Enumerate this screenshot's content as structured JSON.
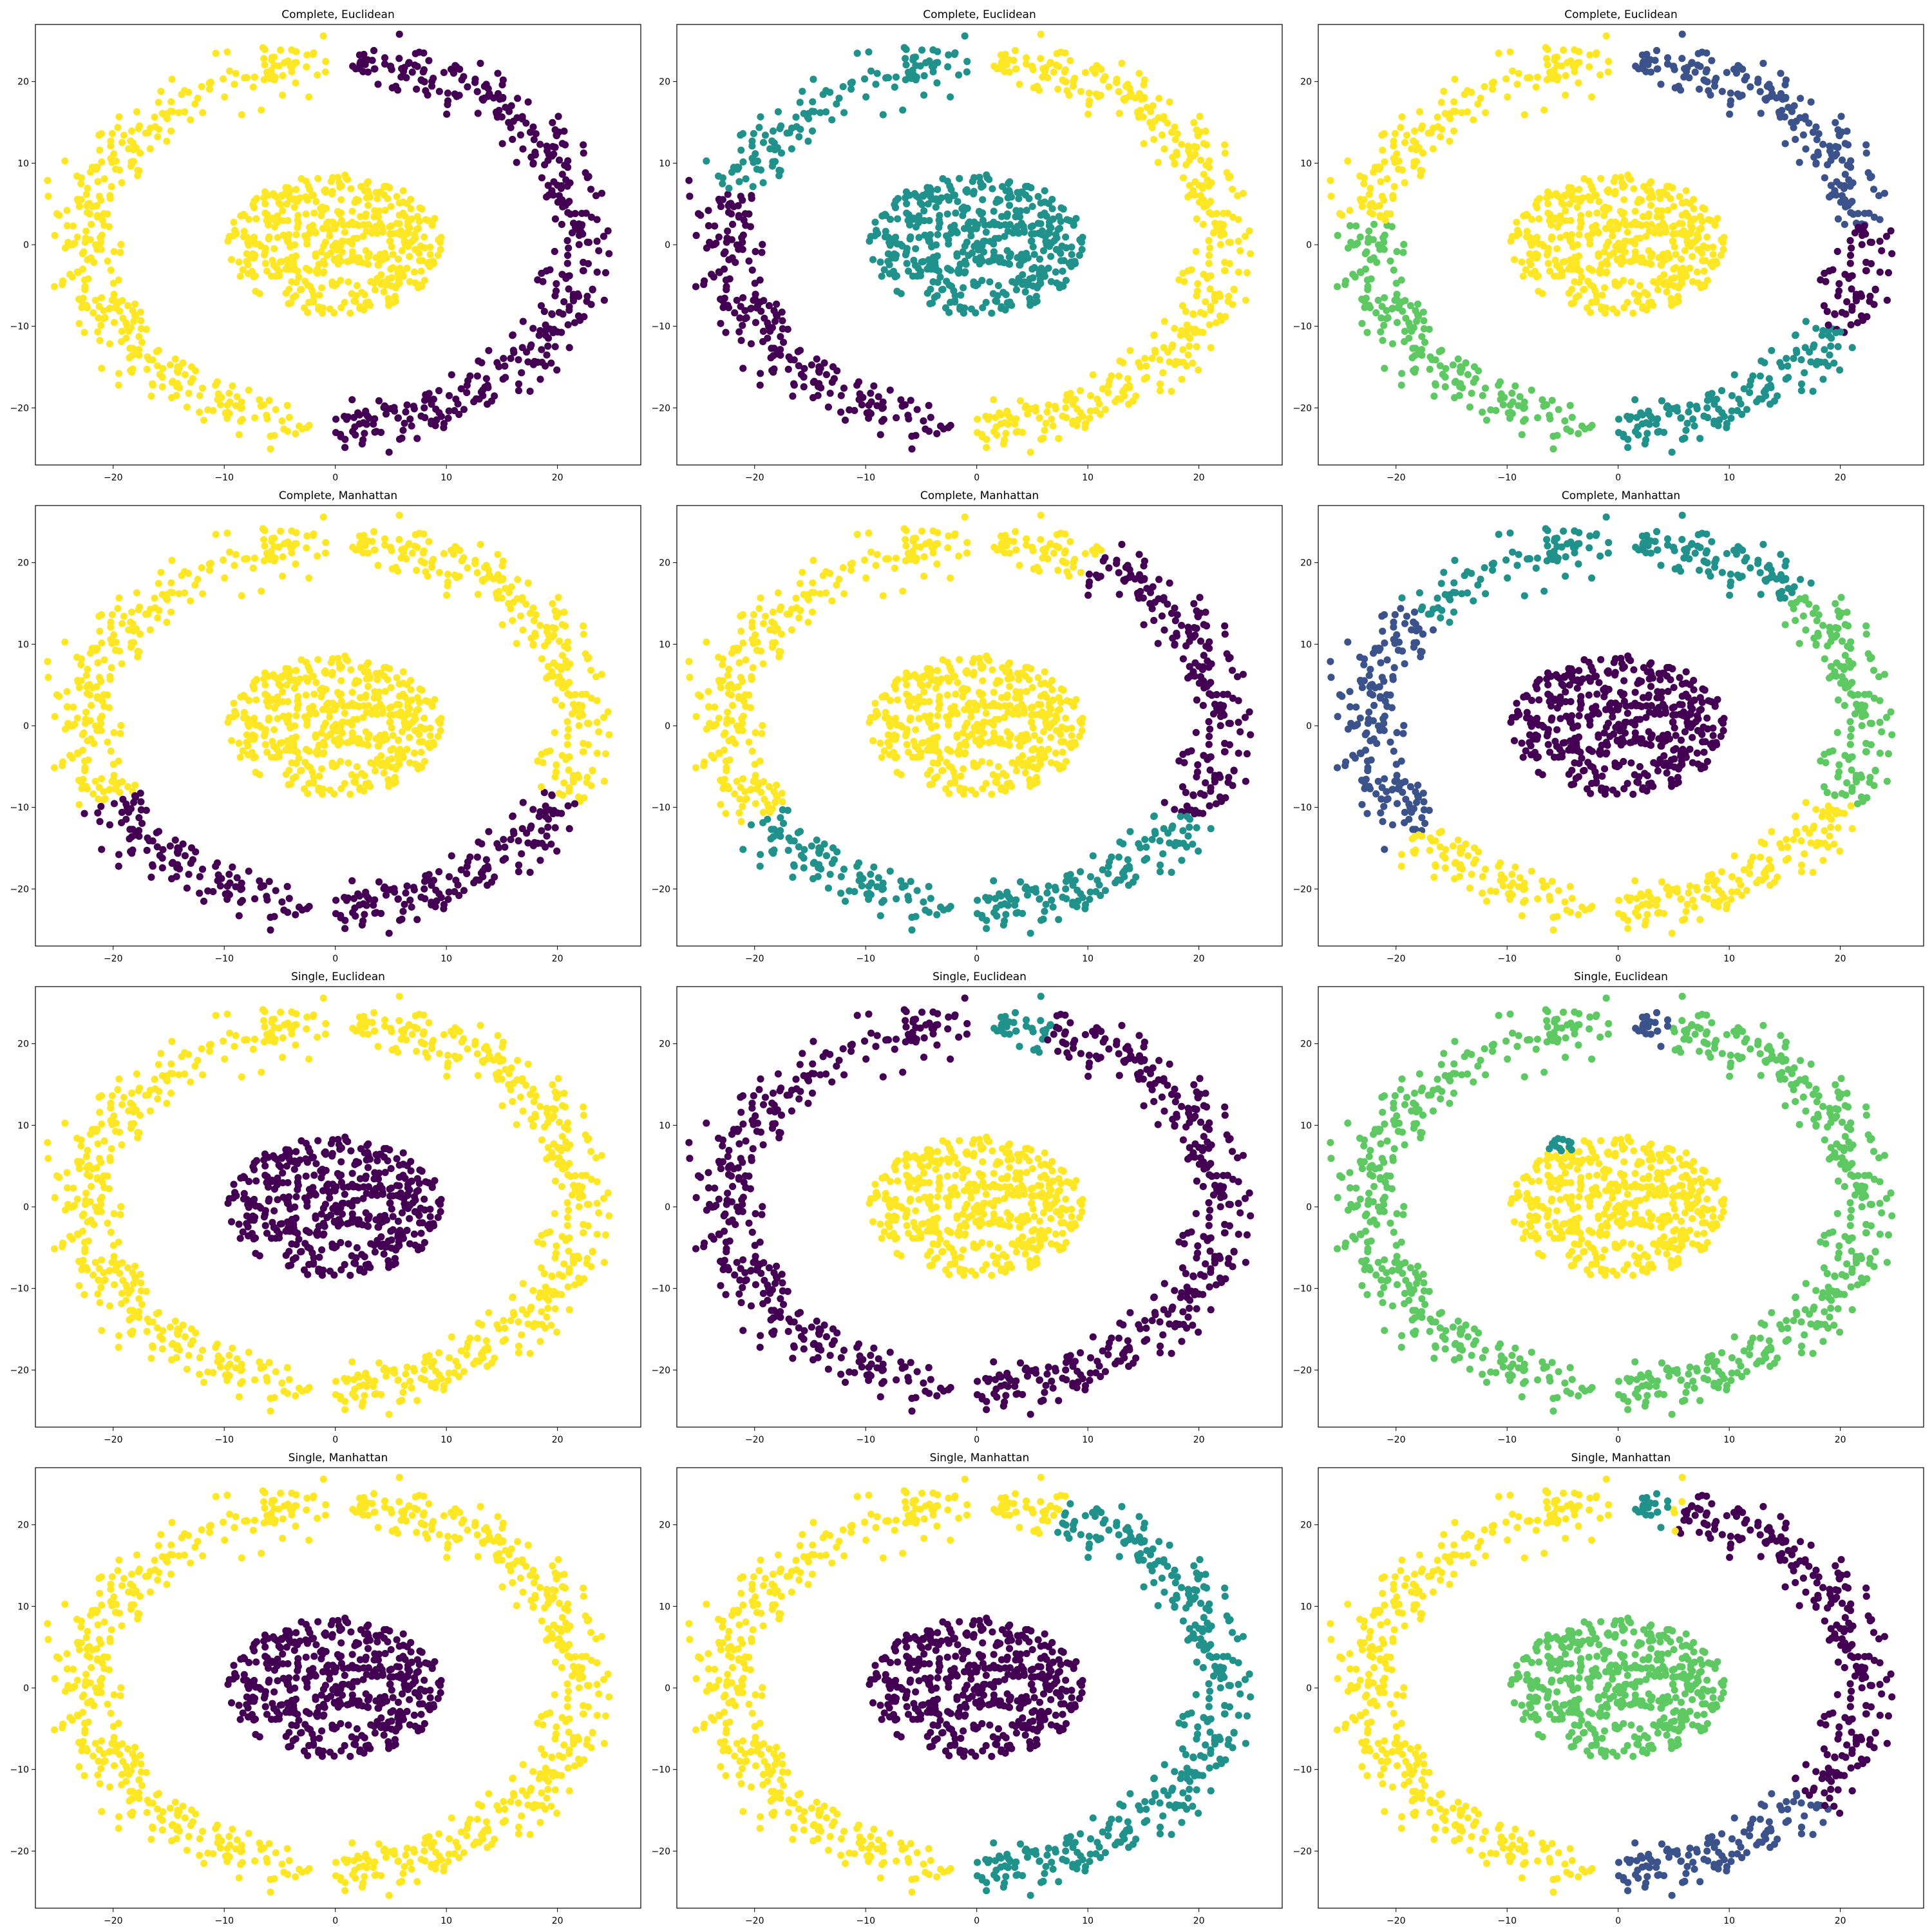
{
  "colors": {
    "c0": "#440154",
    "c1": "#3b528b",
    "c2": "#21918c",
    "c3": "#5ec962",
    "c4": "#fde725"
  },
  "chart_data": [
    {
      "type": "scatter",
      "title": "Complete, Euclidean",
      "xlim": [
        -27,
        27.5
      ],
      "ylim": [
        -27,
        27
      ],
      "xticks": [
        -20,
        -10,
        0,
        10,
        20
      ],
      "yticks": [
        -20,
        -10,
        0,
        10,
        20
      ],
      "grid": false,
      "scheme": "ce2"
    },
    {
      "type": "scatter",
      "title": "Complete, Euclidean",
      "xlim": [
        -27,
        27.5
      ],
      "ylim": [
        -27,
        27
      ],
      "xticks": [
        -20,
        -10,
        0,
        10,
        20
      ],
      "yticks": [
        -20,
        -10,
        0,
        10,
        20
      ],
      "grid": false,
      "scheme": "ce3"
    },
    {
      "type": "scatter",
      "title": "Complete, Euclidean",
      "xlim": [
        -27,
        27.5
      ],
      "ylim": [
        -27,
        27
      ],
      "xticks": [
        -20,
        -10,
        0,
        10,
        20
      ],
      "yticks": [
        -20,
        -10,
        0,
        10,
        20
      ],
      "grid": false,
      "scheme": "ce4"
    },
    {
      "type": "scatter",
      "title": "Complete, Manhattan",
      "xlim": [
        -27,
        27.5
      ],
      "ylim": [
        -27,
        27
      ],
      "xticks": [
        -20,
        -10,
        0,
        10,
        20
      ],
      "yticks": [
        -20,
        -10,
        0,
        10,
        20
      ],
      "grid": false,
      "scheme": "cm2"
    },
    {
      "type": "scatter",
      "title": "Complete, Manhattan",
      "xlim": [
        -27,
        27.5
      ],
      "ylim": [
        -27,
        27
      ],
      "xticks": [
        -20,
        -10,
        0,
        10,
        20
      ],
      "yticks": [
        -20,
        -10,
        0,
        10,
        20
      ],
      "grid": false,
      "scheme": "cm3"
    },
    {
      "type": "scatter",
      "title": "Complete, Manhattan",
      "xlim": [
        -27,
        27.5
      ],
      "ylim": [
        -27,
        27
      ],
      "xticks": [
        -20,
        -10,
        0,
        10,
        20
      ],
      "yticks": [
        -20,
        -10,
        0,
        10,
        20
      ],
      "grid": false,
      "scheme": "cm4"
    },
    {
      "type": "scatter",
      "title": "Single, Euclidean",
      "xlim": [
        -27,
        27.5
      ],
      "ylim": [
        -27,
        27
      ],
      "xticks": [
        -20,
        -10,
        0,
        10,
        20
      ],
      "yticks": [
        -20,
        -10,
        0,
        10,
        20
      ],
      "grid": false,
      "scheme": "se2"
    },
    {
      "type": "scatter",
      "title": "Single, Euclidean",
      "xlim": [
        -27,
        27.5
      ],
      "ylim": [
        -27,
        27
      ],
      "xticks": [
        -20,
        -10,
        0,
        10,
        20
      ],
      "yticks": [
        -20,
        -10,
        0,
        10,
        20
      ],
      "grid": false,
      "scheme": "se3"
    },
    {
      "type": "scatter",
      "title": "Single, Euclidean",
      "xlim": [
        -27,
        27.5
      ],
      "ylim": [
        -27,
        27
      ],
      "xticks": [
        -20,
        -10,
        0,
        10,
        20
      ],
      "yticks": [
        -20,
        -10,
        0,
        10,
        20
      ],
      "grid": false,
      "scheme": "se4"
    },
    {
      "type": "scatter",
      "title": "Single, Manhattan",
      "xlim": [
        -27,
        27.5
      ],
      "ylim": [
        -27,
        27
      ],
      "xticks": [
        -20,
        -10,
        0,
        10,
        20
      ],
      "yticks": [
        -20,
        -10,
        0,
        10,
        20
      ],
      "grid": false,
      "scheme": "sm2"
    },
    {
      "type": "scatter",
      "title": "Single, Manhattan",
      "xlim": [
        -27,
        27.5
      ],
      "ylim": [
        -27,
        27
      ],
      "xticks": [
        -20,
        -10,
        0,
        10,
        20
      ],
      "yticks": [
        -20,
        -10,
        0,
        10,
        20
      ],
      "grid": false,
      "scheme": "sm3"
    },
    {
      "type": "scatter",
      "title": "Single, Manhattan",
      "xlim": [
        -27,
        27.5
      ],
      "ylim": [
        -27,
        27
      ],
      "xticks": [
        -20,
        -10,
        0,
        10,
        20
      ],
      "yticks": [
        -20,
        -10,
        0,
        10,
        20
      ],
      "grid": false,
      "scheme": "sm4"
    }
  ]
}
